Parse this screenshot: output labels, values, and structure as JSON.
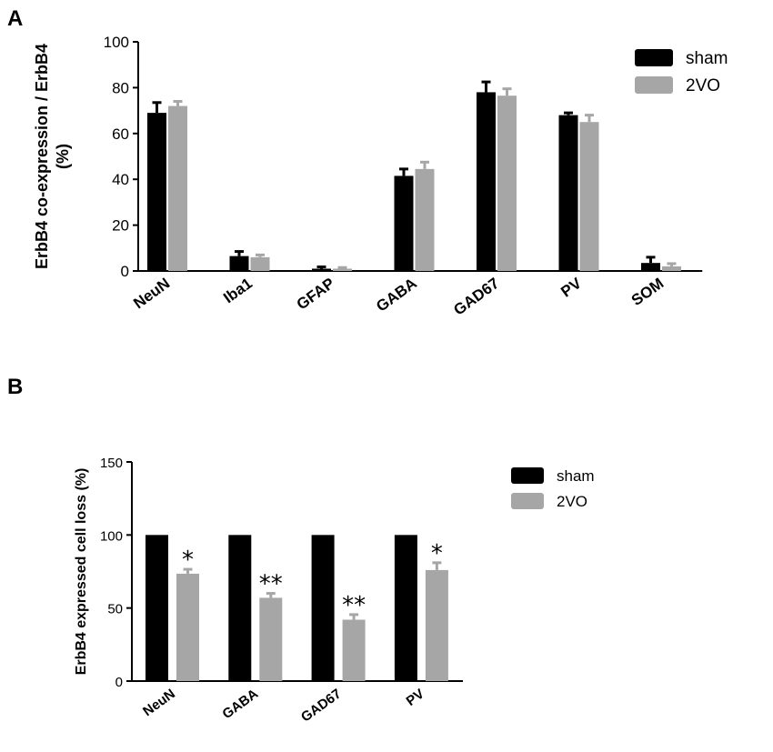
{
  "colors": {
    "sham": "#000000",
    "2VO": "#a6a6a6"
  },
  "chart_data": [
    {
      "panel": "A",
      "type": "bar",
      "ylabel": "ErbB4 co-expression / ErbB4 (%)",
      "ylabel_lines": [
        "ErbB4 co-expression / ErbB4",
        "(%)"
      ],
      "ylim": [
        0,
        100
      ],
      "yticks": [
        0,
        20,
        40,
        60,
        80,
        100
      ],
      "categories": [
        "NeuN",
        "Iba1",
        "GFAP",
        "GABA",
        "GAD67",
        "PV",
        "SOM"
      ],
      "series": [
        {
          "name": "sham",
          "values": [
            69,
            6.5,
            1,
            41.5,
            78,
            68,
            3.5
          ],
          "errors": [
            4.5,
            2,
            0.8,
            3,
            4.5,
            1,
            2.5
          ]
        },
        {
          "name": "2VO",
          "values": [
            72,
            6,
            1,
            44.5,
            76.5,
            65,
            2
          ],
          "errors": [
            2,
            1,
            0.5,
            3,
            3,
            3,
            1.2
          ]
        }
      ],
      "legend_position": "top-right",
      "grid": false
    },
    {
      "panel": "B",
      "type": "bar",
      "ylabel": "ErbB4 expressed cell loss (%)",
      "ylim": [
        0,
        150
      ],
      "yticks": [
        0,
        50,
        100,
        150
      ],
      "categories": [
        "NeuN",
        "GABA",
        "GAD67",
        "PV"
      ],
      "series": [
        {
          "name": "sham",
          "values": [
            100,
            100,
            100,
            100
          ],
          "errors": [
            0,
            0,
            0,
            0
          ]
        },
        {
          "name": "2VO",
          "values": [
            73.5,
            57,
            42,
            76
          ],
          "errors": [
            3,
            3,
            3.5,
            5
          ]
        }
      ],
      "annotations": [
        "*",
        "**",
        "**",
        "*"
      ],
      "legend_position": "top-right",
      "grid": false
    }
  ]
}
